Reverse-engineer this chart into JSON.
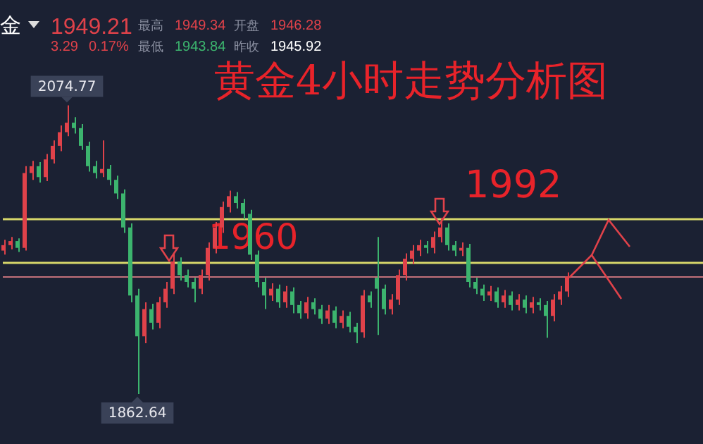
{
  "chart_data": {
    "type": "candlestick",
    "title": "黄金4小时走势分析图",
    "categories": [
      null,
      null,
      null,
      null,
      null,
      null,
      null,
      null,
      null,
      null,
      null,
      null,
      null,
      null,
      null,
      null,
      null,
      null,
      null,
      null,
      null,
      null,
      null,
      null,
      null,
      null,
      null,
      null,
      null,
      null,
      null,
      null,
      null,
      null,
      null,
      null,
      null,
      null,
      null,
      null,
      null,
      null,
      null,
      null,
      null,
      null,
      null,
      null,
      null,
      null,
      null,
      null,
      null,
      null,
      null,
      null,
      null,
      null,
      null,
      null,
      null,
      null,
      null,
      null,
      null,
      null,
      null,
      null,
      null,
      null,
      null,
      null,
      null,
      null,
      null,
      null,
      null,
      null,
      null,
      null,
      null
    ],
    "ohlc": [
      [
        1968,
        1976,
        1965,
        1972
      ],
      [
        1972,
        1978,
        1969,
        1975
      ],
      [
        1975,
        1977,
        1967,
        1970
      ],
      [
        1970,
        2030,
        1968,
        2025
      ],
      [
        2025,
        2034,
        2020,
        2030
      ],
      [
        2030,
        2033,
        2018,
        2022
      ],
      [
        2022,
        2039,
        2019,
        2035
      ],
      [
        2035,
        2049,
        2032,
        2045
      ],
      [
        2045,
        2060,
        2041,
        2055
      ],
      [
        2055,
        2074.77,
        2052,
        2062
      ],
      [
        2062,
        2066,
        2054,
        2058
      ],
      [
        2058,
        2061,
        2042,
        2045
      ],
      [
        2045,
        2048,
        2026,
        2030
      ],
      [
        2030,
        2034,
        2021,
        2025
      ],
      [
        2025,
        2049,
        2022,
        2028
      ],
      [
        2028,
        2031,
        2016,
        2020
      ],
      [
        2020,
        2023,
        2006,
        2010
      ],
      [
        2010,
        2013,
        1981,
        1985
      ],
      [
        1985,
        1988,
        1930,
        1935
      ],
      [
        1935,
        1940,
        1862.64,
        1905
      ],
      [
        1905,
        1930,
        1900,
        1925
      ],
      [
        1925,
        1929,
        1910,
        1915
      ],
      [
        1915,
        1934,
        1911,
        1930
      ],
      [
        1930,
        1945,
        1926,
        1940
      ],
      [
        1940,
        1966,
        1936,
        1960
      ],
      [
        1960,
        1963,
        1946,
        1950
      ],
      [
        1950,
        1954,
        1941,
        1945
      ],
      [
        1945,
        1948,
        1930,
        1940
      ],
      [
        1940,
        1954,
        1936,
        1950
      ],
      [
        1950,
        1974,
        1946,
        1970
      ],
      [
        1970,
        1989,
        1966,
        1985
      ],
      [
        1985,
        2004,
        1981,
        2000
      ],
      [
        2000,
        2012,
        1996,
        2008
      ],
      [
        2008,
        2011,
        1999,
        2003
      ],
      [
        2003,
        2006,
        1991,
        1995
      ],
      [
        1995,
        1998,
        1961,
        1965
      ],
      [
        1965,
        1968,
        1941,
        1945
      ],
      [
        1945,
        1948,
        1925,
        1935
      ],
      [
        1935,
        1944,
        1931,
        1940
      ],
      [
        1940,
        1943,
        1926,
        1930
      ],
      [
        1930,
        1942,
        1926,
        1938
      ],
      [
        1938,
        1941,
        1922,
        1928
      ],
      [
        1928,
        1931,
        1918,
        1922
      ],
      [
        1922,
        1934,
        1918,
        1930
      ],
      [
        1930,
        1933,
        1921,
        1925
      ],
      [
        1925,
        1928,
        1914,
        1918
      ],
      [
        1918,
        1928,
        1914,
        1924
      ],
      [
        1924,
        1927,
        1911,
        1915
      ],
      [
        1915,
        1924,
        1911,
        1920
      ],
      [
        1920,
        1923,
        1908,
        1912
      ],
      [
        1912,
        1915,
        1900,
        1908
      ],
      [
        1908,
        1939,
        1904,
        1935
      ],
      [
        1935,
        1938,
        1926,
        1930
      ],
      [
        1948,
        1978,
        1906,
        1940
      ],
      [
        1940,
        1943,
        1921,
        1925
      ],
      [
        1925,
        1936,
        1921,
        1932
      ],
      [
        1932,
        1954,
        1928,
        1950
      ],
      [
        1950,
        1966,
        1946,
        1962
      ],
      [
        1962,
        1972,
        1958,
        1968
      ],
      [
        1968,
        1976,
        1964,
        1972
      ],
      [
        1972,
        1975,
        1966,
        1970
      ],
      [
        1970,
        1982,
        1966,
        1978
      ],
      [
        1978,
        1992,
        1974,
        1985
      ],
      [
        1985,
        1988,
        1968,
        1972
      ],
      [
        1972,
        1975,
        1964,
        1968
      ],
      [
        1968,
        1974,
        1964,
        1970
      ],
      [
        1970,
        1973,
        1941,
        1945
      ],
      [
        1945,
        1948,
        1936,
        1940
      ],
      [
        1940,
        1943,
        1931,
        1935
      ],
      [
        1935,
        1942,
        1931,
        1938
      ],
      [
        1938,
        1941,
        1926,
        1930
      ],
      [
        1930,
        1939,
        1926,
        1935
      ],
      [
        1935,
        1938,
        1924,
        1928
      ],
      [
        1928,
        1936,
        1924,
        1932
      ],
      [
        1932,
        1935,
        1922,
        1926
      ],
      [
        1926,
        1934,
        1922,
        1930
      ],
      [
        1930,
        1933,
        1924,
        1928
      ],
      [
        1928,
        1931,
        1904,
        1920
      ],
      [
        1920,
        1936,
        1916,
        1932
      ],
      [
        1932,
        1942,
        1928,
        1938
      ],
      [
        1938,
        1952,
        1934,
        1949
      ]
    ],
    "ref_lines": [
      {
        "axis": "y",
        "value": 1992,
        "label": "1992",
        "color": "#d6d66a"
      },
      {
        "axis": "y",
        "value": 1960,
        "label": "1960",
        "color": "#d6d66a"
      },
      {
        "axis": "y",
        "value": 1949.21,
        "color": "#c2707a"
      }
    ],
    "annotations": [
      "金",
      "1949.21",
      "3.29",
      "0.17%",
      "最高",
      "1949.34",
      "开盘",
      "1946.28",
      "最低",
      "1943.84",
      "昨收",
      "1945.92",
      {
        "text": "2074.77",
        "y": 2074.77
      },
      {
        "text": "1862.64",
        "y": 1862.64
      }
    ]
  }
}
